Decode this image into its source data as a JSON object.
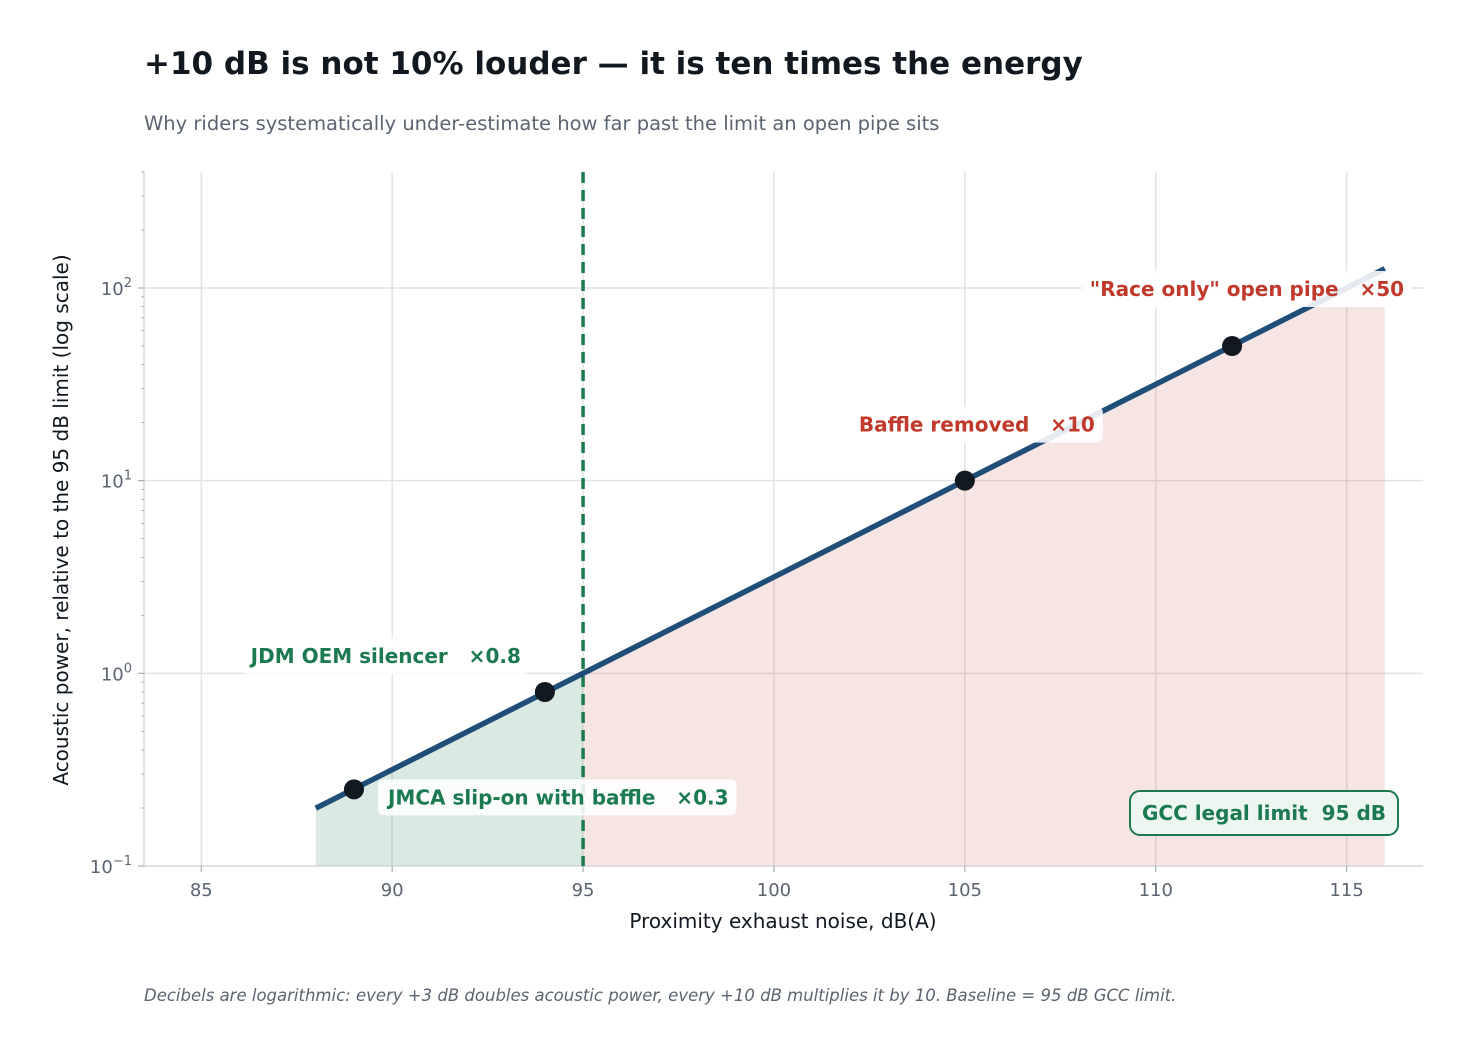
{
  "title": "+10 dB is not 10% louder — it is ten times the energy",
  "subtitle": "Why riders systematically under-estimate how far past the limit an open pipe sits",
  "footnote": "Decibels are logarithmic: every +3 dB doubles acoustic power, every +10 dB multiplies it by 10. Baseline = 95 dB GCC limit.",
  "colors": {
    "line": "#1f4e79",
    "legal_fill": "#1b7a50",
    "illegal_fill": "#c0392b",
    "legal_text": "#1b7a50",
    "illegal_text": "#c0392b",
    "limit_line": "#1b7a50",
    "point": "#111820"
  },
  "chart_data": {
    "type": "line",
    "xlabel": "Proximity exhaust noise, dB(A)",
    "ylabel": "Acoustic power, relative to the 95 dB limit  (log scale)",
    "xlim": [
      83.5,
      117
    ],
    "ylim": [
      0.1,
      400
    ],
    "yscale": "log",
    "grid": true,
    "x_ticks": [
      85,
      90,
      95,
      100,
      105,
      110,
      115
    ],
    "y_ticks": [
      0.1,
      1,
      10,
      100
    ],
    "y_tick_base": "10",
    "y_tick_exponents": [
      "−1",
      "0",
      "1",
      "2"
    ],
    "series": [
      {
        "x": [
          88,
          116
        ],
        "y": [
          0.1995,
          125.9
        ],
        "relation": "10^((dB-95)/10)"
      }
    ],
    "limit": {
      "x": 95,
      "label": "GCC legal limit  95 dB"
    },
    "points": [
      {
        "x": 89,
        "y": 0.25,
        "label": "JMCA slip-on with baffle   ×0.3",
        "zone": "legal"
      },
      {
        "x": 94,
        "y": 0.8,
        "label": "JDM OEM silencer   ×0.8",
        "zone": "legal"
      },
      {
        "x": 105,
        "y": 10,
        "label": "Baffle removed   ×10",
        "zone": "illegal"
      },
      {
        "x": 112,
        "y": 50,
        "label": "\"Race only\" open pipe   ×50",
        "zone": "illegal"
      }
    ]
  }
}
